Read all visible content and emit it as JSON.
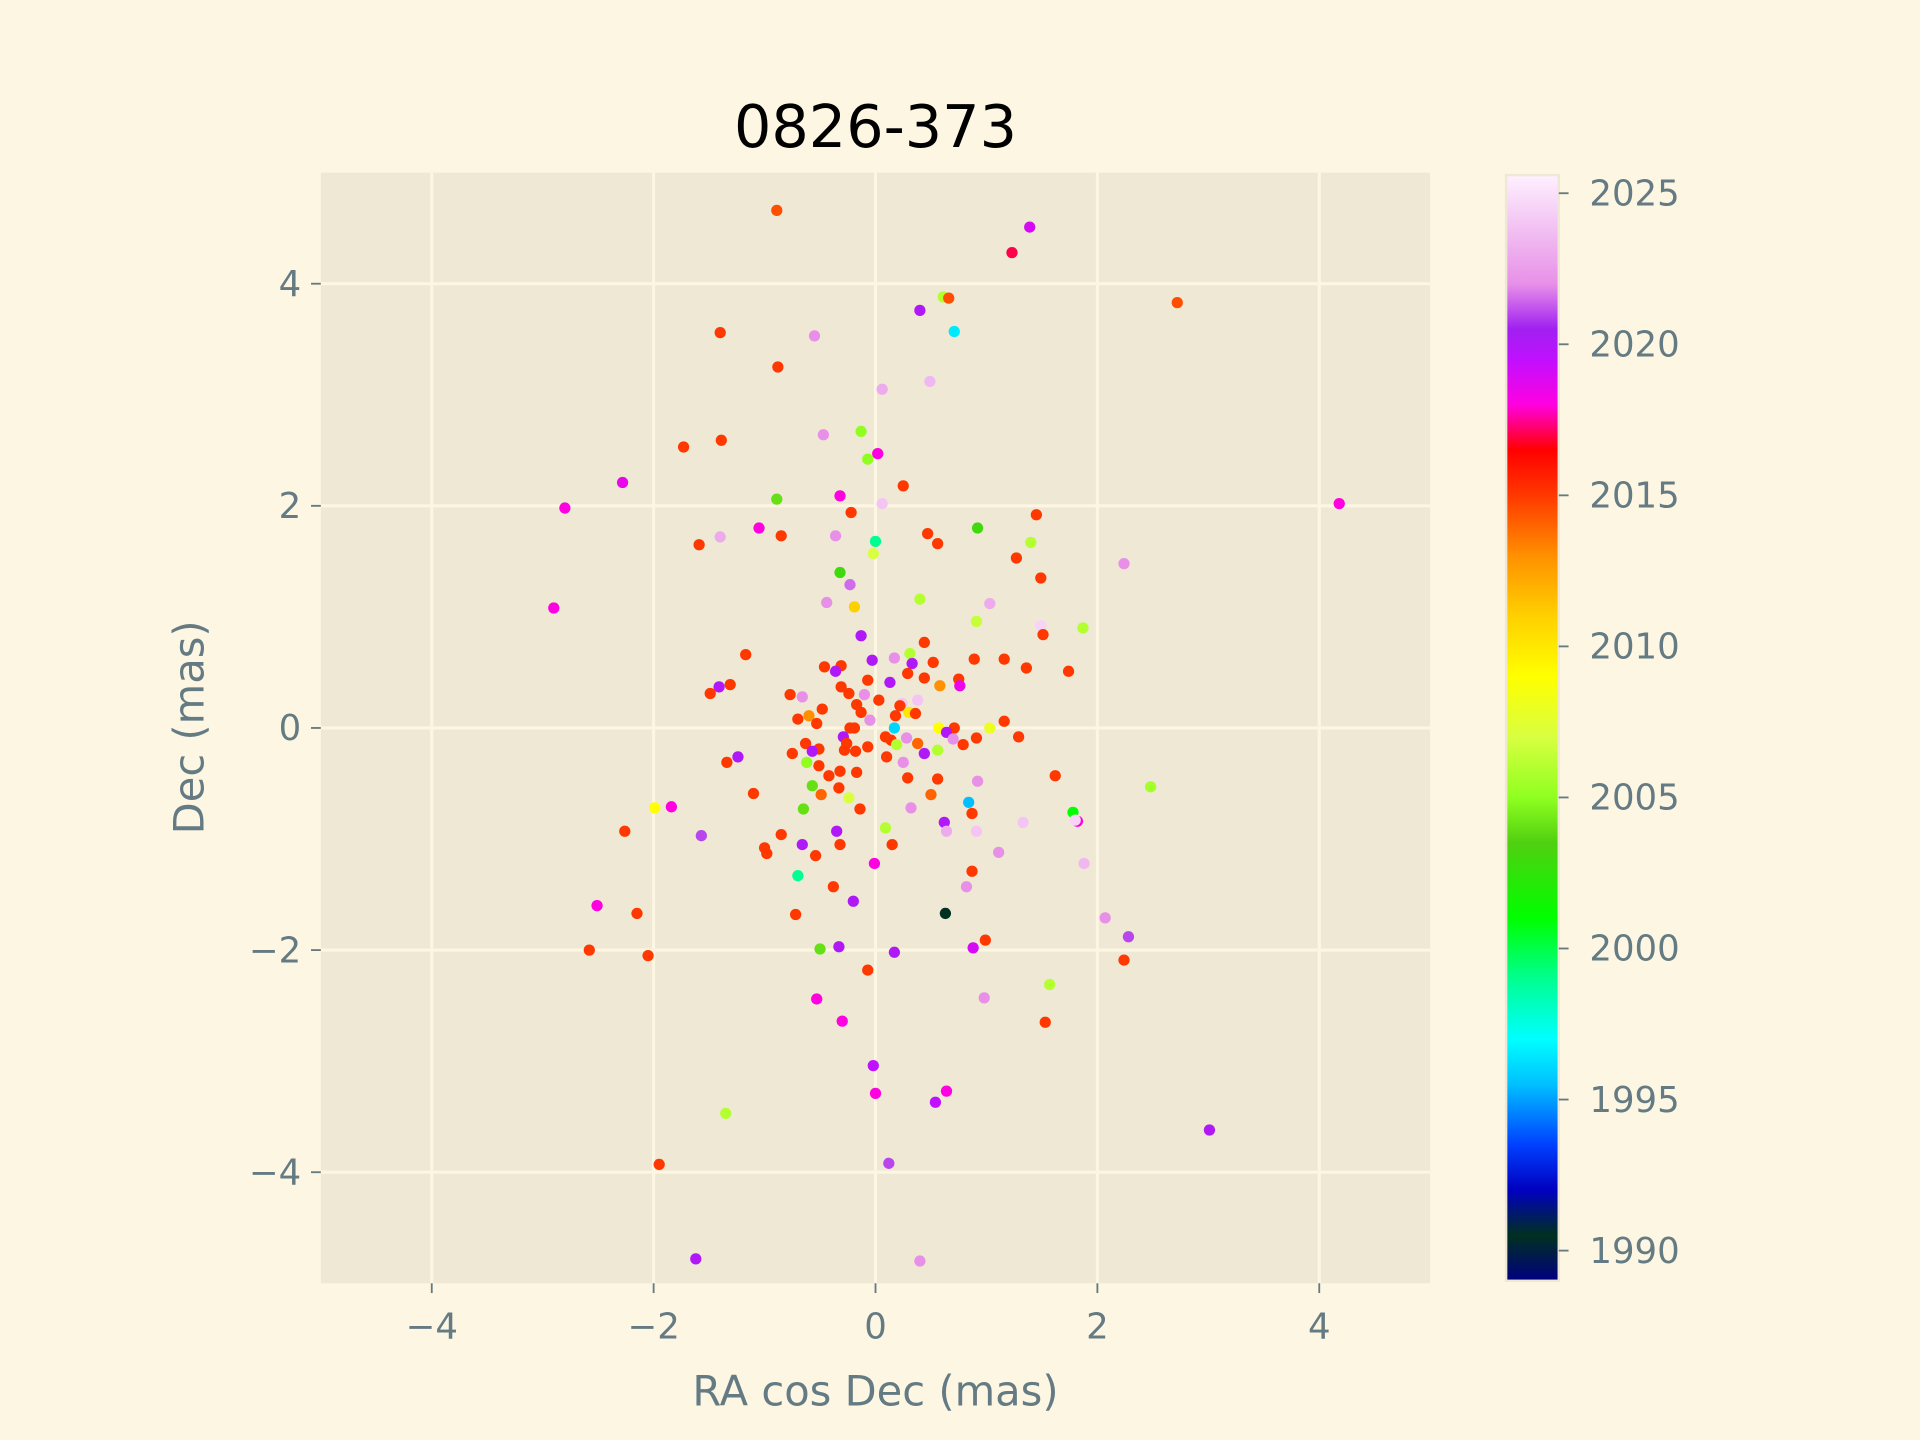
{
  "chart_data": {
    "type": "scatter",
    "title": "0826-373",
    "xlabel": "RA cos Dec (mas)",
    "ylabel": "Dec (mas)",
    "xlim": [
      -5,
      5
    ],
    "ylim": [
      -5,
      5
    ],
    "xticks": [
      -4,
      -2,
      0,
      2,
      4
    ],
    "yticks": [
      -4,
      -2,
      0,
      2,
      4
    ],
    "xtick_labels": [
      "−4",
      "−2",
      "0",
      "2",
      "4"
    ],
    "ytick_labels": [
      "−4",
      "−2",
      "0",
      "2",
      "4"
    ],
    "grid": true,
    "colorbar": {
      "label": "",
      "range": [
        1989.0,
        2025.6
      ],
      "ticks": [
        1990,
        1995,
        2000,
        2005,
        2010,
        2015,
        2020,
        2025
      ],
      "tick_labels": [
        "1990",
        "1995",
        "2000",
        "2005",
        "2010",
        "2015",
        "2020",
        "2025"
      ],
      "colormap": "gist_ncar",
      "stops": [
        [
          1989,
          "#000080"
        ],
        [
          1990.5,
          "#003020"
        ],
        [
          1992,
          "#0000c0"
        ],
        [
          1993.5,
          "#0040ff"
        ],
        [
          1995.5,
          "#00c0ff"
        ],
        [
          1997,
          "#00ffff"
        ],
        [
          1999,
          "#00ff90"
        ],
        [
          2001,
          "#00ff00"
        ],
        [
          2003.5,
          "#50d010"
        ],
        [
          2005,
          "#90ff20"
        ],
        [
          2007,
          "#d8ff40"
        ],
        [
          2009,
          "#ffff00"
        ],
        [
          2011,
          "#ffd000"
        ],
        [
          2013,
          "#ff9000"
        ],
        [
          2015,
          "#ff3800"
        ],
        [
          2016.5,
          "#ff0000"
        ],
        [
          2018,
          "#ff00e0"
        ],
        [
          2019.5,
          "#c010ff"
        ],
        [
          2020.5,
          "#a020f0"
        ],
        [
          2022,
          "#e890e8"
        ],
        [
          2023.5,
          "#f0b8f0"
        ],
        [
          2025.6,
          "#fff0ff"
        ]
      ]
    },
    "points_xy_year": [
      [
        -0.89,
        4.66,
        2014.5
      ],
      [
        1.39,
        4.51,
        2019
      ],
      [
        1.23,
        4.28,
        2017
      ],
      [
        0.61,
        3.88,
        2006
      ],
      [
        0.66,
        3.87,
        2014.5
      ],
      [
        2.72,
        3.83,
        2014.5
      ],
      [
        0.4,
        3.76,
        2020
      ],
      [
        -1.4,
        3.56,
        2015
      ],
      [
        -0.55,
        3.53,
        2022
      ],
      [
        0.71,
        3.57,
        1996.5
      ],
      [
        -0.88,
        3.25,
        2015
      ],
      [
        0.49,
        3.12,
        2023.5
      ],
      [
        0.06,
        3.05,
        2023
      ],
      [
        -0.47,
        2.64,
        2022
      ],
      [
        -0.13,
        2.67,
        2005
      ],
      [
        -1.39,
        2.59,
        2015
      ],
      [
        -1.73,
        2.53,
        2015
      ],
      [
        0.02,
        2.47,
        2018
      ],
      [
        -0.07,
        2.42,
        2005
      ],
      [
        -2.28,
        2.21,
        2018.5
      ],
      [
        0.25,
        2.18,
        2015
      ],
      [
        -0.32,
        2.09,
        2018
      ],
      [
        -0.89,
        2.06,
        2004
      ],
      [
        -2.8,
        1.98,
        2018
      ],
      [
        0.06,
        2.02,
        2024
      ],
      [
        4.18,
        2.02,
        2018
      ],
      [
        -0.22,
        1.94,
        2015
      ],
      [
        1.45,
        1.92,
        2015
      ],
      [
        0.92,
        1.8,
        2003
      ],
      [
        -1.05,
        1.8,
        2018
      ],
      [
        0.47,
        1.75,
        2015
      ],
      [
        -0.85,
        1.73,
        2015
      ],
      [
        -0.36,
        1.73,
        2022
      ],
      [
        -1.4,
        1.72,
        2023
      ],
      [
        -1.59,
        1.65,
        2015
      ],
      [
        0.0,
        1.68,
        1999
      ],
      [
        0.56,
        1.66,
        2015
      ],
      [
        1.4,
        1.67,
        2006
      ],
      [
        -0.02,
        1.57,
        2007
      ],
      [
        1.27,
        1.53,
        2015
      ],
      [
        2.24,
        1.48,
        2022
      ],
      [
        -0.32,
        1.4,
        2003
      ],
      [
        1.49,
        1.35,
        2015
      ],
      [
        -0.23,
        1.29,
        2021.5
      ],
      [
        0.4,
        1.16,
        2006
      ],
      [
        -0.44,
        1.13,
        2022
      ],
      [
        1.03,
        1.12,
        2023
      ],
      [
        -0.19,
        1.09,
        2011
      ],
      [
        -2.9,
        1.08,
        2018
      ],
      [
        0.91,
        0.96,
        2006.5
      ],
      [
        1.49,
        0.92,
        2024.5
      ],
      [
        1.87,
        0.9,
        2006
      ],
      [
        1.51,
        0.84,
        2015
      ],
      [
        -0.13,
        0.83,
        2020
      ],
      [
        0.44,
        0.77,
        2015
      ],
      [
        -1.17,
        0.66,
        2015
      ],
      [
        0.31,
        0.67,
        2006
      ],
      [
        0.17,
        0.63,
        2022
      ],
      [
        0.89,
        0.62,
        2015
      ],
      [
        1.16,
        0.62,
        2015
      ],
      [
        0.52,
        0.59,
        2015
      ],
      [
        -0.03,
        0.61,
        2020
      ],
      [
        0.33,
        0.58,
        2020
      ],
      [
        1.36,
        0.54,
        2015
      ],
      [
        1.74,
        0.51,
        2015
      ],
      [
        -0.46,
        0.55,
        2015
      ],
      [
        -0.31,
        0.56,
        2015
      ],
      [
        -0.36,
        0.51,
        2020
      ],
      [
        0.29,
        0.49,
        2015
      ],
      [
        0.44,
        0.45,
        2015
      ],
      [
        0.75,
        0.44,
        2015
      ],
      [
        -0.07,
        0.43,
        2015
      ],
      [
        0.13,
        0.41,
        2020
      ],
      [
        -1.31,
        0.39,
        2015
      ],
      [
        -1.41,
        0.37,
        2020
      ],
      [
        0.58,
        0.38,
        2013
      ],
      [
        -0.31,
        0.37,
        2015
      ],
      [
        0.76,
        0.38,
        2018.5
      ],
      [
        -0.24,
        0.31,
        2015
      ],
      [
        -1.49,
        0.31,
        2015
      ],
      [
        -0.77,
        0.3,
        2015
      ],
      [
        -0.1,
        0.3,
        2022
      ],
      [
        -0.66,
        0.28,
        2022
      ],
      [
        0.03,
        0.25,
        2015
      ],
      [
        0.38,
        0.25,
        2024
      ],
      [
        0.24,
        0.22,
        2024
      ],
      [
        -0.17,
        0.21,
        2015
      ],
      [
        0.22,
        0.2,
        2015
      ],
      [
        -0.48,
        0.17,
        2015
      ],
      [
        -0.13,
        0.14,
        2015
      ],
      [
        0.3,
        0.14,
        2010
      ],
      [
        0.36,
        0.13,
        2015
      ],
      [
        -0.6,
        0.11,
        2013
      ],
      [
        0.18,
        0.11,
        2015
      ],
      [
        -0.7,
        0.08,
        2015
      ],
      [
        -0.05,
        0.07,
        2022
      ],
      [
        -0.53,
        0.04,
        2015
      ],
      [
        1.16,
        0.06,
        2015
      ],
      [
        0.57,
        0.0,
        2009
      ],
      [
        -0.23,
        0.0,
        2015
      ],
      [
        -0.19,
        0.0,
        2015
      ],
      [
        0.17,
        0.0,
        1996
      ],
      [
        0.71,
        0.0,
        2015
      ],
      [
        1.03,
        0.0,
        2008
      ],
      [
        0.64,
        -0.04,
        2020
      ],
      [
        -0.29,
        -0.08,
        2020
      ],
      [
        0.09,
        -0.08,
        2015
      ],
      [
        1.29,
        -0.08,
        2015
      ],
      [
        0.91,
        -0.09,
        2015
      ],
      [
        0.28,
        -0.09,
        2022
      ],
      [
        0.7,
        -0.1,
        2022
      ],
      [
        0.14,
        -0.11,
        2015
      ],
      [
        -0.26,
        -0.14,
        2015
      ],
      [
        -0.63,
        -0.14,
        2015
      ],
      [
        0.38,
        -0.14,
        2014
      ],
      [
        0.19,
        -0.15,
        2006
      ],
      [
        0.79,
        -0.15,
        2015
      ],
      [
        -0.07,
        -0.17,
        2015
      ],
      [
        -0.51,
        -0.19,
        2015
      ],
      [
        -0.28,
        -0.2,
        2015
      ],
      [
        0.56,
        -0.2,
        2006
      ],
      [
        -0.57,
        -0.21,
        2020
      ],
      [
        -0.18,
        -0.21,
        2015
      ],
      [
        -0.75,
        -0.23,
        2015
      ],
      [
        0.44,
        -0.23,
        2020
      ],
      [
        0.1,
        -0.26,
        2015
      ],
      [
        -1.24,
        -0.26,
        2020
      ],
      [
        -0.62,
        -0.31,
        2005
      ],
      [
        0.25,
        -0.31,
        2022
      ],
      [
        -1.34,
        -0.31,
        2015
      ],
      [
        -0.51,
        -0.34,
        2015
      ],
      [
        -0.17,
        -0.4,
        2015
      ],
      [
        -0.32,
        -0.39,
        2015
      ],
      [
        -0.42,
        -0.43,
        2015
      ],
      [
        0.29,
        -0.45,
        2015
      ],
      [
        0.56,
        -0.46,
        2015
      ],
      [
        0.92,
        -0.48,
        2022
      ],
      [
        1.62,
        -0.43,
        2015
      ],
      [
        2.48,
        -0.53,
        2005.5
      ],
      [
        -0.57,
        -0.52,
        2004
      ],
      [
        -0.33,
        -0.54,
        2015
      ],
      [
        -1.1,
        -0.59,
        2015
      ],
      [
        -0.49,
        -0.6,
        2014
      ],
      [
        0.5,
        -0.6,
        2014
      ],
      [
        -0.24,
        -0.63,
        2007
      ],
      [
        0.84,
        -0.67,
        1995.5
      ],
      [
        -1.99,
        -0.72,
        2009
      ],
      [
        -1.84,
        -0.71,
        2018
      ],
      [
        -0.65,
        -0.73,
        2004
      ],
      [
        -0.14,
        -0.73,
        2015
      ],
      [
        0.32,
        -0.72,
        2022
      ],
      [
        0.87,
        -0.77,
        2015
      ],
      [
        1.78,
        -0.76,
        2001
      ],
      [
        1.82,
        -0.84,
        2018
      ],
      [
        1.8,
        -0.83,
        2024.5
      ],
      [
        0.62,
        -0.85,
        2020
      ],
      [
        1.33,
        -0.85,
        2024
      ],
      [
        -2.26,
        -0.93,
        2015
      ],
      [
        0.09,
        -0.9,
        2006
      ],
      [
        0.64,
        -0.93,
        2023
      ],
      [
        0.91,
        -0.93,
        2024
      ],
      [
        -0.35,
        -0.93,
        2020
      ],
      [
        -0.85,
        -0.96,
        2015
      ],
      [
        -1.57,
        -0.97,
        2021
      ],
      [
        -0.32,
        -1.05,
        2015
      ],
      [
        -0.66,
        -1.05,
        2020
      ],
      [
        0.15,
        -1.05,
        2015
      ],
      [
        -1.0,
        -1.08,
        2015
      ],
      [
        -0.98,
        -1.13,
        2015
      ],
      [
        1.11,
        -1.12,
        2022
      ],
      [
        -0.54,
        -1.15,
        2015
      ],
      [
        1.88,
        -1.22,
        2023.5
      ],
      [
        -0.01,
        -1.22,
        2018
      ],
      [
        0.87,
        -1.29,
        2015
      ],
      [
        -0.7,
        -1.33,
        1999
      ],
      [
        0.82,
        -1.43,
        2022
      ],
      [
        -0.38,
        -1.43,
        2015
      ],
      [
        -0.2,
        -1.56,
        2020
      ],
      [
        -2.51,
        -1.6,
        2018
      ],
      [
        -0.72,
        -1.68,
        2015
      ],
      [
        -2.15,
        -1.67,
        2015
      ],
      [
        0.63,
        -1.67,
        1990.5
      ],
      [
        2.07,
        -1.71,
        2022
      ],
      [
        2.28,
        -1.88,
        2021
      ],
      [
        0.99,
        -1.91,
        2015
      ],
      [
        -0.33,
        -1.97,
        2020
      ],
      [
        0.88,
        -1.98,
        2019
      ],
      [
        -0.5,
        -1.99,
        2004
      ],
      [
        -2.58,
        -2.0,
        2015
      ],
      [
        0.17,
        -2.02,
        2020
      ],
      [
        -2.05,
        -2.05,
        2015
      ],
      [
        2.24,
        -2.09,
        2015
      ],
      [
        -0.07,
        -2.18,
        2015
      ],
      [
        1.57,
        -2.31,
        2006
      ],
      [
        0.98,
        -2.43,
        2022
      ],
      [
        -0.53,
        -2.44,
        2018
      ],
      [
        -0.3,
        -2.64,
        2018
      ],
      [
        1.53,
        -2.65,
        2015
      ],
      [
        -0.02,
        -3.04,
        2019.5
      ],
      [
        0.64,
        -3.27,
        2018
      ],
      [
        0.0,
        -3.29,
        2018
      ],
      [
        0.54,
        -3.37,
        2019.5
      ],
      [
        -1.35,
        -3.47,
        2006
      ],
      [
        3.01,
        -3.62,
        2020
      ],
      [
        0.12,
        -3.92,
        2021
      ],
      [
        -1.95,
        -3.93,
        2015
      ],
      [
        -1.62,
        -4.78,
        2020
      ],
      [
        0.4,
        -4.8,
        2022
      ]
    ]
  }
}
